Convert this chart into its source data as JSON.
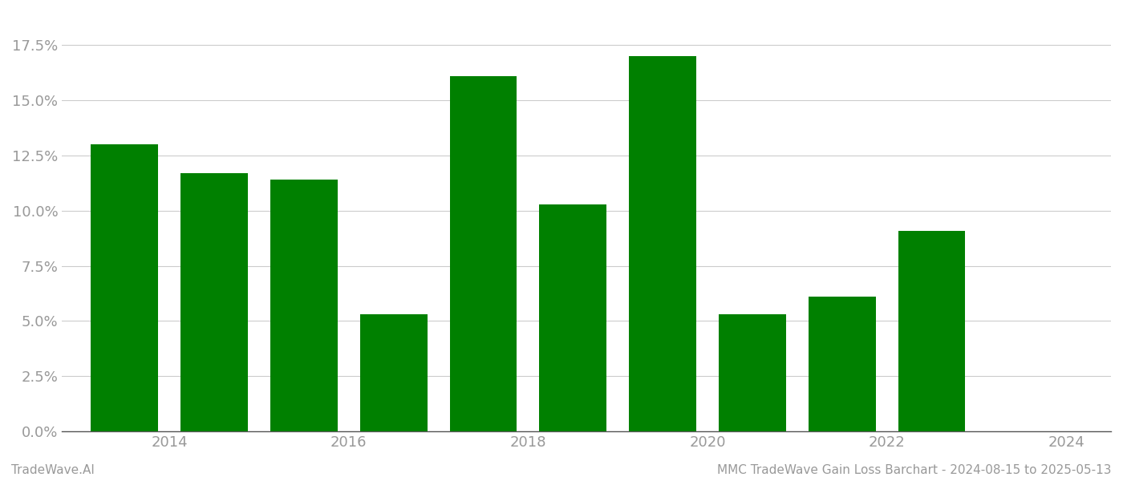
{
  "bar_positions": [
    2013,
    2014,
    2015,
    2016,
    2017,
    2018,
    2019,
    2020,
    2021,
    2022
  ],
  "values": [
    0.13,
    0.117,
    0.114,
    0.053,
    0.161,
    0.103,
    0.17,
    0.053,
    0.061,
    0.091
  ],
  "bar_color": "#008000",
  "background_color": "#ffffff",
  "ylim": [
    0,
    0.19
  ],
  "yticks": [
    0.0,
    0.025,
    0.05,
    0.075,
    0.1,
    0.125,
    0.15,
    0.175
  ],
  "xtick_positions": [
    2013.5,
    2015.5,
    2017.5,
    2019.5,
    2021.5,
    2023.5
  ],
  "xtick_labels": [
    "2014",
    "2016",
    "2018",
    "2020",
    "2022",
    "2024"
  ],
  "xlim": [
    2012.3,
    2024.0
  ],
  "grid_color": "#cccccc",
  "axis_label_color": "#999999",
  "footer_left": "TradeWave.AI",
  "footer_right": "MMC TradeWave Gain Loss Barchart - 2024-08-15 to 2025-05-13",
  "footer_color": "#999999",
  "footer_fontsize": 11,
  "tick_fontsize": 13,
  "bar_width": 0.75
}
